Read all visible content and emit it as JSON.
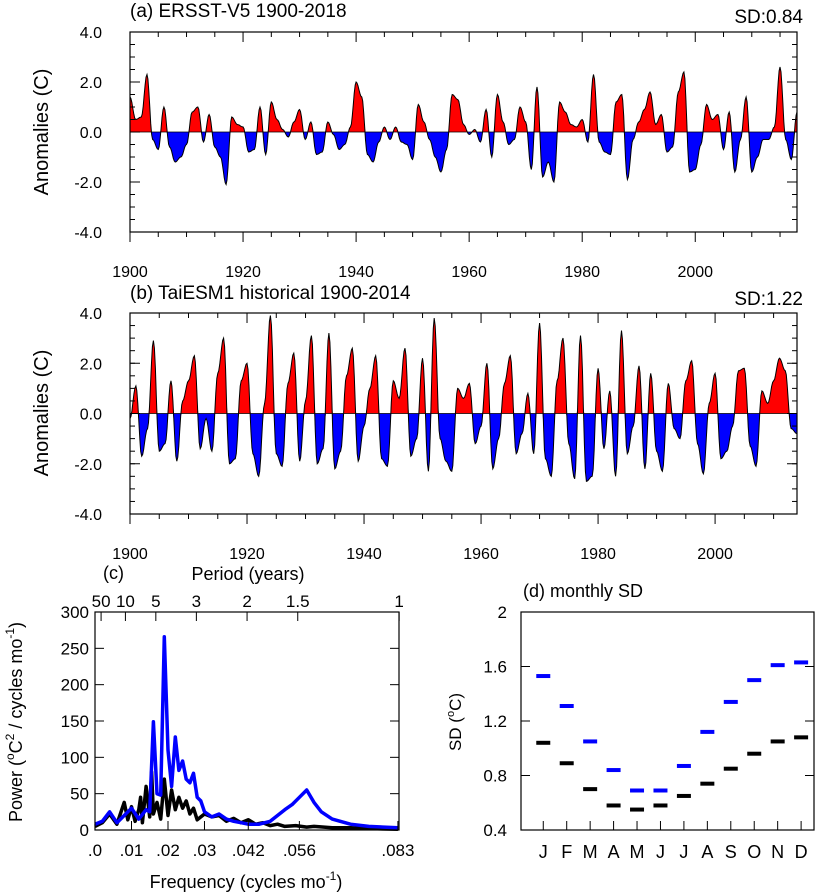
{
  "colors": {
    "positive": "#ff0000",
    "negative": "#0000ff",
    "line": "#000000",
    "ersst": "#000000",
    "taiesm": "#0000ff"
  },
  "chart_data": [
    {
      "id": "a",
      "type": "area",
      "title": "(a) ERSST-V5 1900-2018",
      "sd_label": "SD:0.84",
      "xlabel": "",
      "ylabel": "Anomalies (C)",
      "xlim": [
        1900,
        2018
      ],
      "ylim": [
        -4.0,
        4.0
      ],
      "xticks": [
        1900,
        1920,
        1940,
        1960,
        1980,
        2000
      ],
      "yticks": [
        -4.0,
        -2.0,
        0.0,
        2.0,
        4.0
      ],
      "ytick_labels": [
        "-4.0",
        "-2.0",
        "0.0",
        "2.0",
        "4.0"
      ],
      "series": [
        {
          "x": [
            1900,
            1901,
            1902,
            1903,
            1904,
            1905,
            1906,
            1907,
            1908,
            1909,
            1910,
            1911,
            1912,
            1913,
            1914,
            1915,
            1916,
            1917,
            1918,
            1919,
            1920,
            1921,
            1922,
            1923,
            1924,
            1925,
            1926,
            1927,
            1928,
            1929,
            1930,
            1931,
            1932,
            1933,
            1934,
            1935,
            1936,
            1937,
            1938,
            1939,
            1940,
            1941,
            1942,
            1943,
            1944,
            1945,
            1946,
            1947,
            1948,
            1949,
            1950,
            1951,
            1952,
            1953,
            1954,
            1955,
            1956,
            1957,
            1958,
            1959,
            1960,
            1961,
            1962,
            1963,
            1964,
            1965,
            1966,
            1967,
            1968,
            1969,
            1970,
            1971,
            1972,
            1973,
            1974,
            1975,
            1976,
            1977,
            1978,
            1979,
            1980,
            1981,
            1982,
            1983,
            1984,
            1985,
            1986,
            1987,
            1988,
            1989,
            1990,
            1991,
            1992,
            1993,
            1994,
            1995,
            1996,
            1997,
            1998,
            1999,
            2000,
            2001,
            2002,
            2003,
            2004,
            2005,
            2006,
            2007,
            2008,
            2009,
            2010,
            2011,
            2012,
            2013,
            2014,
            2015,
            2016,
            2017,
            2018
          ],
          "y": [
            1.4,
            0.5,
            0.6,
            2.3,
            -0.3,
            -0.7,
            1.0,
            -0.6,
            -1.2,
            -1.0,
            -0.5,
            0.8,
            1.0,
            -0.4,
            0.7,
            -0.6,
            -1.0,
            -2.1,
            0.6,
            0.3,
            0.2,
            -0.8,
            -0.7,
            1.0,
            -0.9,
            1.2,
            0.5,
            0.1,
            -0.2,
            0.4,
            0.9,
            -0.3,
            0.4,
            -0.9,
            -0.8,
            0.4,
            -0.1,
            -0.7,
            -0.5,
            0.2,
            2.0,
            1.4,
            -0.9,
            -1.2,
            -0.4,
            0.2,
            -0.3,
            0.2,
            -0.4,
            -0.5,
            -1.1,
            1.1,
            0.4,
            -0.3,
            -1.0,
            -1.6,
            -0.7,
            1.5,
            1.3,
            0.3,
            -0.1,
            0.1,
            -0.4,
            0.9,
            -1.0,
            1.5,
            0.4,
            -0.5,
            -0.3,
            1.0,
            0.4,
            -1.5,
            1.8,
            -1.8,
            -1.2,
            -2.0,
            1.2,
            0.8,
            0.3,
            0.2,
            0.5,
            -0.4,
            2.3,
            -0.4,
            -0.8,
            -0.9,
            1.2,
            1.5,
            -1.9,
            -0.3,
            0.4,
            0.9,
            1.6,
            0.3,
            0.7,
            -0.8,
            -0.6,
            1.6,
            2.4,
            -1.6,
            -1.5,
            -0.5,
            1.1,
            0.5,
            0.7,
            -0.7,
            0.8,
            -1.6,
            -0.3,
            1.4,
            -1.6,
            -1.0,
            -0.3,
            -0.3,
            0.2,
            2.6,
            -0.3,
            -1.1,
            0.8
          ]
        }
      ]
    },
    {
      "id": "b",
      "type": "area",
      "title": "(b) TaiESM1 historical 1900-2014",
      "sd_label": "SD:1.22",
      "xlabel": "",
      "ylabel": "Anomalies (C)",
      "xlim": [
        1900,
        2014
      ],
      "ylim": [
        -4.0,
        4.0
      ],
      "xticks": [
        1900,
        1920,
        1940,
        1960,
        1980,
        2000
      ],
      "yticks": [
        -4.0,
        -2.0,
        0.0,
        2.0,
        4.0
      ],
      "ytick_labels": [
        "-4.0",
        "-2.0",
        "0.0",
        "2.0",
        "4.0"
      ],
      "series": [
        {
          "x": [
            1900,
            1901,
            1902,
            1903,
            1904,
            1905,
            1906,
            1907,
            1908,
            1909,
            1910,
            1911,
            1912,
            1913,
            1914,
            1915,
            1916,
            1917,
            1918,
            1919,
            1920,
            1921,
            1922,
            1923,
            1924,
            1925,
            1926,
            1927,
            1928,
            1929,
            1930,
            1931,
            1932,
            1933,
            1934,
            1935,
            1936,
            1937,
            1938,
            1939,
            1940,
            1941,
            1942,
            1943,
            1944,
            1945,
            1946,
            1947,
            1948,
            1949,
            1950,
            1951,
            1952,
            1953,
            1954,
            1955,
            1956,
            1957,
            1958,
            1959,
            1960,
            1961,
            1962,
            1963,
            1964,
            1965,
            1966,
            1967,
            1968,
            1969,
            1970,
            1971,
            1972,
            1973,
            1974,
            1975,
            1976,
            1977,
            1978,
            1979,
            1980,
            1981,
            1982,
            1983,
            1984,
            1985,
            1986,
            1987,
            1988,
            1989,
            1990,
            1991,
            1992,
            1993,
            1994,
            1995,
            1996,
            1997,
            1998,
            1999,
            2000,
            2001,
            2002,
            2003,
            2004,
            2005,
            2006,
            2007,
            2008,
            2009,
            2010,
            2011,
            2012,
            2013,
            2014
          ],
          "y": [
            -0.2,
            1.1,
            -1.7,
            -0.6,
            2.9,
            -1.5,
            -1.2,
            1.3,
            -1.9,
            0.5,
            1.3,
            2.3,
            -1.4,
            -0.2,
            -1.5,
            1.6,
            3.0,
            -2.0,
            -1.8,
            1.3,
            2.0,
            -1.6,
            -2.5,
            0.4,
            3.9,
            -1.6,
            -2.1,
            1.2,
            2.4,
            -1.9,
            0.5,
            3.1,
            -2.0,
            -1.4,
            3.2,
            -2.2,
            -1.5,
            1.5,
            2.6,
            -1.9,
            -0.5,
            1.0,
            2.3,
            -1.8,
            -2.1,
            1.3,
            0.6,
            2.6,
            -1.7,
            -1.0,
            2.2,
            -2.3,
            3.8,
            -1.0,
            -1.9,
            -2.3,
            1.0,
            0.6,
            1.2,
            -1.2,
            -0.5,
            2.0,
            -2.2,
            -1.0,
            1.2,
            2.3,
            -1.6,
            -0.8,
            0.8,
            -1.6,
            3.6,
            -1.8,
            -2.5,
            1.3,
            3.0,
            -1.2,
            -2.6,
            3.1,
            -2.7,
            -2.5,
            1.8,
            -1.4,
            0.9,
            -2.5,
            3.3,
            -1.6,
            -0.5,
            1.9,
            -2.2,
            1.6,
            -1.5,
            -2.3,
            1.2,
            -0.6,
            -1.0,
            1.3,
            2.1,
            -1.2,
            -2.4,
            0.4,
            1.6,
            -1.8,
            -1.5,
            -0.5,
            1.7,
            1.8,
            -1.3,
            -2.1,
            0.9,
            0.4,
            1.3,
            2.2,
            1.7,
            -0.6,
            -0.8
          ]
        }
      ]
    },
    {
      "id": "c",
      "type": "line",
      "panel_label": "(c)",
      "xlabel_base": "Frequency (cycles mo",
      "xlabel_exp": "-1",
      "xlabel_end": ")",
      "ylabel_pre": "Power (",
      "ylabel_o": "o",
      "ylabel_c": "C",
      "ylabel_2": "2",
      "ylabel_mid": " / cycles mo",
      "ylabel_exp": "-1",
      "ylabel_end": ")",
      "top_axis_label": "Period (years)",
      "xlim": [
        0,
        0.0833
      ],
      "ylim": [
        0,
        300
      ],
      "xticks": [
        0.0,
        0.01,
        0.02,
        0.03,
        0.042,
        0.056,
        0.083
      ],
      "xtick_labels": [
        ".0",
        ".01",
        ".02",
        ".03",
        ".042",
        ".056",
        ".083"
      ],
      "yticks": [
        0,
        50,
        100,
        150,
        200,
        250,
        300
      ],
      "ytick_labels": [
        "0",
        "50",
        "100",
        "150",
        "200",
        "250",
        "300"
      ],
      "top_ticks": [
        50,
        10,
        5,
        3,
        2,
        1.5,
        1
      ],
      "top_tick_labels": [
        "50",
        "10",
        "5",
        "3",
        "2",
        "1.5",
        "1"
      ],
      "series": [
        {
          "name": "ERSST-V5",
          "color": "#000000",
          "x": [
            0.0,
            0.002,
            0.004,
            0.006,
            0.008,
            0.009,
            0.01,
            0.011,
            0.012,
            0.0125,
            0.013,
            0.014,
            0.015,
            0.0155,
            0.016,
            0.017,
            0.018,
            0.019,
            0.02,
            0.021,
            0.022,
            0.023,
            0.024,
            0.025,
            0.026,
            0.027,
            0.028,
            0.03,
            0.032,
            0.034,
            0.036,
            0.038,
            0.04,
            0.042,
            0.044,
            0.046,
            0.048,
            0.05,
            0.052,
            0.055,
            0.058,
            0.06,
            0.065,
            0.07,
            0.075,
            0.083
          ],
          "y": [
            5,
            10,
            22,
            8,
            38,
            14,
            32,
            12,
            28,
            45,
            10,
            60,
            18,
            80,
            22,
            38,
            15,
            70,
            20,
            55,
            28,
            45,
            30,
            40,
            22,
            30,
            14,
            22,
            18,
            20,
            12,
            16,
            10,
            14,
            8,
            10,
            6,
            8,
            5,
            6,
            4,
            5,
            3,
            3,
            2,
            1
          ]
        },
        {
          "name": "TaiESM1",
          "color": "#0000ff",
          "x": [
            0.0,
            0.002,
            0.004,
            0.006,
            0.008,
            0.01,
            0.012,
            0.014,
            0.015,
            0.016,
            0.017,
            0.018,
            0.019,
            0.02,
            0.021,
            0.022,
            0.023,
            0.024,
            0.025,
            0.026,
            0.027,
            0.028,
            0.029,
            0.03,
            0.032,
            0.034,
            0.036,
            0.038,
            0.04,
            0.042,
            0.045,
            0.048,
            0.05,
            0.052,
            0.054,
            0.056,
            0.058,
            0.06,
            0.062,
            0.065,
            0.07,
            0.075,
            0.083
          ],
          "y": [
            8,
            12,
            25,
            10,
            20,
            30,
            15,
            28,
            25,
            149,
            50,
            48,
            266,
            110,
            60,
            128,
            82,
            95,
            70,
            65,
            78,
            45,
            40,
            25,
            18,
            22,
            15,
            12,
            10,
            8,
            8,
            12,
            20,
            28,
            35,
            45,
            55,
            38,
            25,
            15,
            8,
            5,
            3
          ]
        }
      ]
    },
    {
      "id": "d",
      "type": "scatter",
      "title": "(d) monthly SD",
      "ylabel_pre": "SD (",
      "ylabel_o": "o",
      "ylabel_post": "C)",
      "categories": [
        "J",
        "F",
        "M",
        "A",
        "M",
        "J",
        "J",
        "A",
        "S",
        "O",
        "N",
        "D"
      ],
      "ylim": [
        0.4,
        2.0
      ],
      "yticks": [
        0.4,
        0.8,
        1.2,
        1.6,
        2.0
      ],
      "ytick_labels": [
        "0.4",
        "0.8",
        "1.2",
        "1.6",
        "2"
      ],
      "series": [
        {
          "name": "ERSST-V5",
          "color": "#000000",
          "values": [
            1.04,
            0.89,
            0.7,
            0.58,
            0.55,
            0.58,
            0.65,
            0.74,
            0.85,
            0.96,
            1.05,
            1.08
          ]
        },
        {
          "name": "TaiESM1",
          "color": "#0000ff",
          "values": [
            1.53,
            1.31,
            1.05,
            0.84,
            0.69,
            0.69,
            0.87,
            1.12,
            1.34,
            1.5,
            1.61,
            1.63
          ]
        }
      ]
    }
  ]
}
